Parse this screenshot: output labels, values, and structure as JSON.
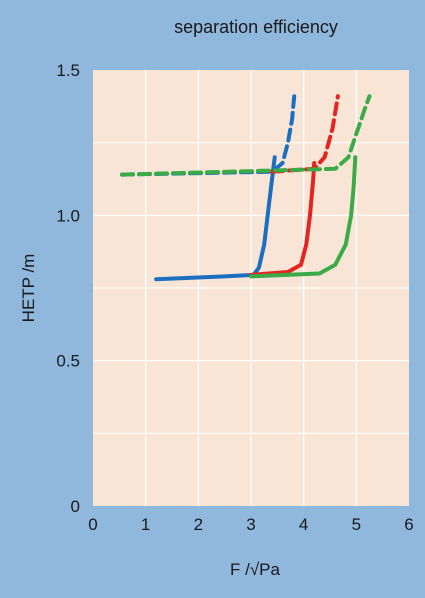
{
  "chart_data": {
    "type": "line",
    "title": "separation efficiency",
    "xlabel": "F /√Pa",
    "ylabel": "HETP /m",
    "xlim": [
      0,
      6
    ],
    "ylim": [
      0,
      1.5
    ],
    "x_ticks": [
      "0",
      "1",
      "2",
      "3",
      "4",
      "5",
      "6"
    ],
    "y_ticks": [
      "0",
      "0.5",
      "1.0",
      "1.5"
    ],
    "grid": true,
    "colors": {
      "background": "#8fb8dc",
      "plot_area": "#f8e5d5",
      "grid": "#ffffff",
      "blue": "#1a6fc0",
      "red": "#e52421",
      "green": "#3aab46"
    },
    "series": [
      {
        "color": "blue",
        "style": "solid",
        "points": [
          [
            1.2,
            0.78
          ],
          [
            2.5,
            0.79
          ],
          [
            3.05,
            0.795
          ],
          [
            3.15,
            0.82
          ],
          [
            3.25,
            0.9
          ],
          [
            3.35,
            1.05
          ],
          [
            3.45,
            1.2
          ]
        ]
      },
      {
        "color": "red",
        "style": "solid",
        "points": [
          [
            3.0,
            0.795
          ],
          [
            3.7,
            0.805
          ],
          [
            3.95,
            0.83
          ],
          [
            4.05,
            0.9
          ],
          [
            4.12,
            1.0
          ],
          [
            4.18,
            1.12
          ],
          [
            4.2,
            1.18
          ]
        ]
      },
      {
        "color": "green",
        "style": "solid",
        "points": [
          [
            3.0,
            0.79
          ],
          [
            4.3,
            0.8
          ],
          [
            4.6,
            0.83
          ],
          [
            4.8,
            0.9
          ],
          [
            4.9,
            1.0
          ],
          [
            4.95,
            1.1
          ],
          [
            4.98,
            1.2
          ]
        ]
      },
      {
        "color": "blue",
        "style": "dashed",
        "points": [
          [
            0.55,
            1.14
          ],
          [
            3.4,
            1.15
          ],
          [
            3.6,
            1.18
          ],
          [
            3.7,
            1.25
          ],
          [
            3.78,
            1.33
          ],
          [
            3.82,
            1.41
          ]
        ]
      },
      {
        "color": "red",
        "style": "dashed",
        "points": [
          [
            3.4,
            1.15
          ],
          [
            4.2,
            1.16
          ],
          [
            4.4,
            1.2
          ],
          [
            4.55,
            1.3
          ],
          [
            4.65,
            1.41
          ]
        ]
      },
      {
        "color": "green",
        "style": "dashed",
        "points": [
          [
            0.55,
            1.14
          ],
          [
            4.6,
            1.16
          ],
          [
            4.85,
            1.2
          ],
          [
            5.0,
            1.28
          ],
          [
            5.15,
            1.36
          ],
          [
            5.25,
            1.41
          ]
        ]
      }
    ]
  }
}
